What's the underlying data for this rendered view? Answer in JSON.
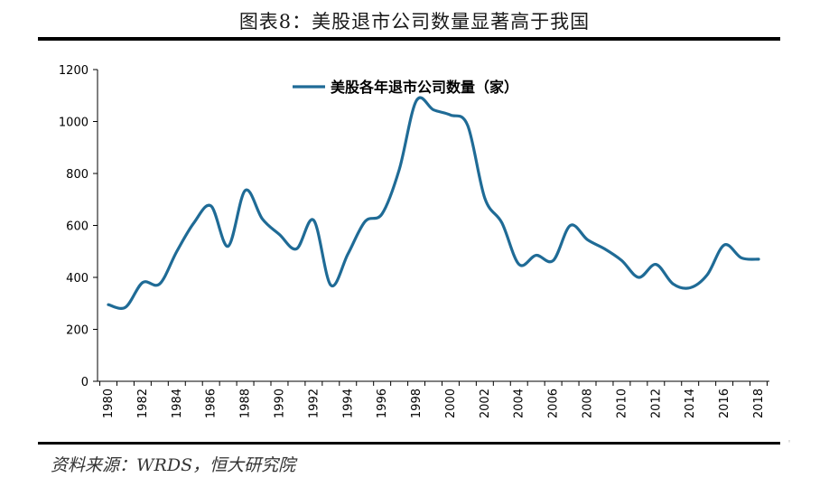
{
  "header": {
    "title": "图表8：美股退市公司数量显著高于我国"
  },
  "footer": {
    "source": "资料来源：WRDS，恒大研究院"
  },
  "colors": {
    "series": "#1f6b96",
    "axis": "#000000"
  },
  "chart_data": {
    "type": "line",
    "title": "",
    "xlabel": "",
    "ylabel": "",
    "ylim": [
      0,
      1200
    ],
    "y_ticks": [
      0,
      200,
      400,
      600,
      800,
      1000,
      1200
    ],
    "x_tick_labels": [
      "1980",
      "1982",
      "1984",
      "1986",
      "1988",
      "1990",
      "1992",
      "1994",
      "1996",
      "1998",
      "2000",
      "2002",
      "2004",
      "2006",
      "2008",
      "2010",
      "2012",
      "2014",
      "2016",
      "2018"
    ],
    "legend_position": "top",
    "grid": false,
    "x": [
      1980,
      1981,
      1982,
      1983,
      1984,
      1985,
      1986,
      1987,
      1988,
      1989,
      1990,
      1991,
      1992,
      1993,
      1994,
      1995,
      1996,
      1997,
      1998,
      1999,
      2000,
      2001,
      2002,
      2003,
      2004,
      2005,
      2006,
      2007,
      2008,
      2009,
      2010,
      2011,
      2012,
      2013,
      2014,
      2015,
      2016,
      2017,
      2018
    ],
    "series": [
      {
        "name": "美股各年退市公司数量（家）",
        "values": [
          295,
          285,
          380,
          375,
          500,
          610,
          675,
          520,
          735,
          625,
          565,
          510,
          620,
          370,
          490,
          615,
          645,
          815,
          1080,
          1045,
          1025,
          985,
          705,
          610,
          450,
          485,
          465,
          600,
          545,
          510,
          465,
          400,
          450,
          375,
          360,
          410,
          525,
          475,
          470
        ]
      }
    ]
  }
}
